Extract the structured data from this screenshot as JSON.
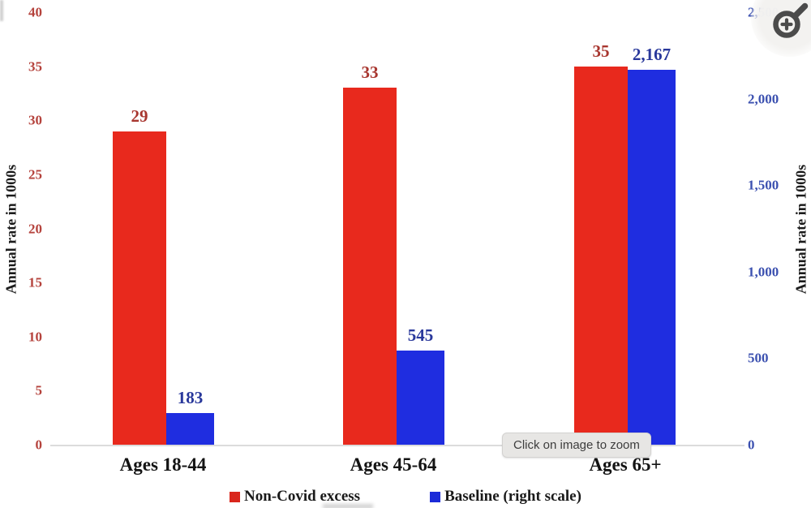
{
  "chart_data": {
    "type": "bar",
    "categories": [
      "Ages 18-44",
      "Ages 45-64",
      "Ages 65+"
    ],
    "series": [
      {
        "name": "Non-Covid excess",
        "axis": "left",
        "color": "#e8291d",
        "values": [
          29,
          33,
          35
        ],
        "labels": [
          "29",
          "33",
          "35"
        ],
        "label_color": "#a8362f"
      },
      {
        "name": "Baseline (right scale)",
        "axis": "right",
        "color": "#1f2de0",
        "values": [
          183,
          545,
          2167
        ],
        "labels": [
          "183",
          "545",
          "2,167"
        ],
        "label_color": "#29389b"
      }
    ],
    "left_axis": {
      "title": "Annual rate in 1000s",
      "ylim": [
        0,
        40
      ],
      "ticks": [
        {
          "v": 0,
          "label": "0"
        },
        {
          "v": 5,
          "label": "5"
        },
        {
          "v": 10,
          "label": "10"
        },
        {
          "v": 15,
          "label": "15"
        },
        {
          "v": 20,
          "label": "20"
        },
        {
          "v": 25,
          "label": "25"
        },
        {
          "v": 30,
          "label": "30"
        },
        {
          "v": 35,
          "label": "35"
        },
        {
          "v": 40,
          "label": "40"
        }
      ],
      "tick_color": "#b5433d"
    },
    "right_axis": {
      "title": "Annual rate in 1000s",
      "ylim": [
        0,
        2500
      ],
      "ticks": [
        {
          "v": 0,
          "label": "0"
        },
        {
          "v": 500,
          "label": "500"
        },
        {
          "v": 1000,
          "label": "1,000"
        },
        {
          "v": 1500,
          "label": "1,500"
        },
        {
          "v": 2000,
          "label": "2,000"
        },
        {
          "v": 2500,
          "label": "2,500"
        }
      ],
      "tick_color": "#3c51b0"
    },
    "legend_position": "bottom",
    "grid": false,
    "title": ""
  },
  "legend": {
    "items": [
      {
        "label": "Non-Covid excess",
        "color": "#d9261c"
      },
      {
        "label": "Baseline (right scale)",
        "color": "#1b2bd8"
      }
    ]
  },
  "tooltip": {
    "text": "Click on image to zoom"
  },
  "zoom_button": {
    "icon": "magnifier-plus-icon"
  }
}
